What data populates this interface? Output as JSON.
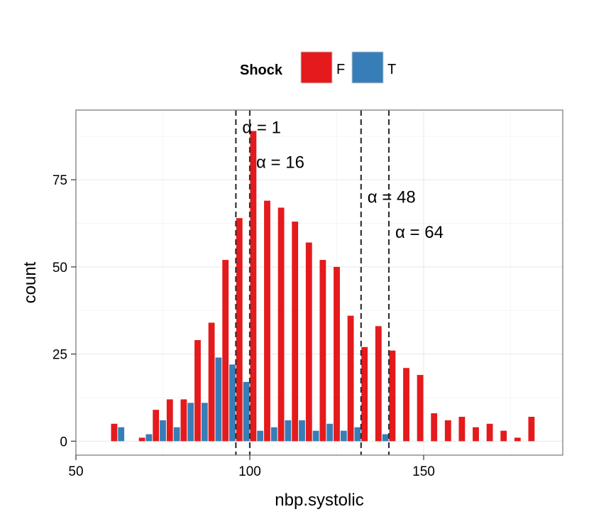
{
  "chart_data": {
    "type": "bar",
    "title": "",
    "xlabel": "nbp.systolic",
    "ylabel": "count",
    "xlim": [
      50,
      190
    ],
    "ylim": [
      -4,
      95
    ],
    "x_ticks": [
      50,
      100,
      150
    ],
    "y_ticks": [
      0,
      25,
      50,
      75
    ],
    "grid": true,
    "legend": {
      "title": "Shock",
      "position": "top",
      "entries": [
        {
          "label": "F",
          "color": "#e41a1c"
        },
        {
          "label": "T",
          "color": "#377eb8"
        }
      ]
    },
    "bin_width": 4,
    "series": [
      {
        "name": "F",
        "color": "#e41a1c",
        "bins": [
          {
            "x": 62,
            "y": 5
          },
          {
            "x": 70,
            "y": 1
          },
          {
            "x": 74,
            "y": 9
          },
          {
            "x": 78,
            "y": 12
          },
          {
            "x": 82,
            "y": 12
          },
          {
            "x": 86,
            "y": 29
          },
          {
            "x": 90,
            "y": 34
          },
          {
            "x": 94,
            "y": 52
          },
          {
            "x": 98,
            "y": 64
          },
          {
            "x": 102,
            "y": 89
          },
          {
            "x": 106,
            "y": 69
          },
          {
            "x": 110,
            "y": 67
          },
          {
            "x": 114,
            "y": 63
          },
          {
            "x": 118,
            "y": 57
          },
          {
            "x": 122,
            "y": 52
          },
          {
            "x": 126,
            "y": 50
          },
          {
            "x": 130,
            "y": 36
          },
          {
            "x": 134,
            "y": 27
          },
          {
            "x": 138,
            "y": 33
          },
          {
            "x": 142,
            "y": 26
          },
          {
            "x": 146,
            "y": 21
          },
          {
            "x": 150,
            "y": 19
          },
          {
            "x": 154,
            "y": 8
          },
          {
            "x": 158,
            "y": 6
          },
          {
            "x": 162,
            "y": 7
          },
          {
            "x": 166,
            "y": 4
          },
          {
            "x": 170,
            "y": 5
          },
          {
            "x": 174,
            "y": 3
          },
          {
            "x": 178,
            "y": 1
          },
          {
            "x": 182,
            "y": 7
          }
        ]
      },
      {
        "name": "T",
        "color": "#377eb8",
        "bins": [
          {
            "x": 62,
            "y": 4
          },
          {
            "x": 70,
            "y": 2
          },
          {
            "x": 74,
            "y": 6
          },
          {
            "x": 78,
            "y": 4
          },
          {
            "x": 82,
            "y": 11
          },
          {
            "x": 86,
            "y": 11
          },
          {
            "x": 90,
            "y": 24
          },
          {
            "x": 94,
            "y": 22
          },
          {
            "x": 98,
            "y": 17
          },
          {
            "x": 102,
            "y": 3
          },
          {
            "x": 106,
            "y": 4
          },
          {
            "x": 110,
            "y": 6
          },
          {
            "x": 114,
            "y": 6
          },
          {
            "x": 118,
            "y": 3
          },
          {
            "x": 122,
            "y": 5
          },
          {
            "x": 126,
            "y": 3
          },
          {
            "x": 130,
            "y": 4
          },
          {
            "x": 138,
            "y": 2
          }
        ]
      }
    ],
    "vlines": [
      {
        "x": 96,
        "label": "α = 1",
        "label_y": 90
      },
      {
        "x": 100,
        "label": "α = 16",
        "label_y": 80
      },
      {
        "x": 132,
        "label": "α = 48",
        "label_y": 70
      },
      {
        "x": 140,
        "label": "α = 64",
        "label_y": 60
      }
    ]
  }
}
